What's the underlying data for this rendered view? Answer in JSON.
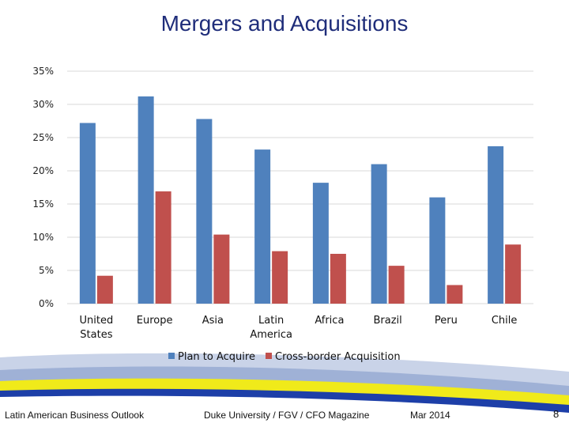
{
  "slide": {
    "footer_left": "Latin American Business Outlook",
    "footer_center": "Duke University / FGV / CFO Magazine",
    "footer_date": "Mar 2014",
    "page_number": "8"
  },
  "colors": {
    "series1": "#4f81bd",
    "series2": "#c0504d",
    "title": "#1f2d7a"
  },
  "chart_data": {
    "type": "bar",
    "title": "Mergers and Acquisitions",
    "categories": [
      "United States",
      "Europe",
      "Asia",
      "Latin America",
      "Africa",
      "Brazil",
      "Peru",
      "Chile"
    ],
    "category_lines": [
      [
        "United",
        "States"
      ],
      [
        "Europe"
      ],
      [
        "Asia"
      ],
      [
        "Latin",
        "America"
      ],
      [
        "Africa"
      ],
      [
        "Brazil"
      ],
      [
        "Peru"
      ],
      [
        "Chile"
      ]
    ],
    "series": [
      {
        "name": "Plan to Acquire",
        "values": [
          27.2,
          31.2,
          27.8,
          23.2,
          18.2,
          21.0,
          16.0,
          23.7
        ]
      },
      {
        "name": "Cross-border Acquisition",
        "values": [
          4.2,
          16.9,
          10.4,
          7.9,
          7.5,
          5.7,
          2.8,
          8.9
        ]
      }
    ],
    "ylim": [
      0,
      35
    ],
    "yticks": [
      0,
      5,
      10,
      15,
      20,
      25,
      30,
      35
    ],
    "ytick_labels": [
      "0%",
      "5%",
      "10%",
      "15%",
      "20%",
      "25%",
      "30%",
      "35%"
    ],
    "grid": true,
    "legend": "bottom"
  }
}
